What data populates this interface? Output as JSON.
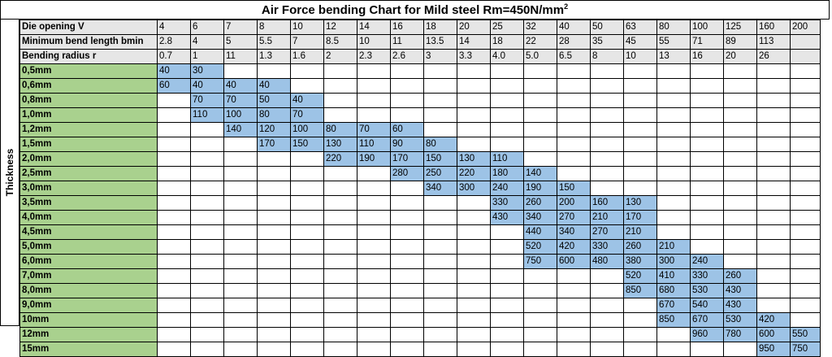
{
  "title": "Air Force bending Chart for Mild steel Rm=450N/mm",
  "title_sup": "2",
  "side_label": "Thickness",
  "header_rows": [
    {
      "label": "Die opening V",
      "values": [
        "4",
        "6",
        "7",
        "8",
        "10",
        "12",
        "14",
        "16",
        "18",
        "20",
        "25",
        "32",
        "40",
        "50",
        "63",
        "80",
        "100",
        "125",
        "160",
        "200"
      ]
    },
    {
      "label": "Minimum bend length bmin",
      "values": [
        "2.8",
        "4",
        "5",
        "5.5",
        "7",
        "8.5",
        "10",
        "11",
        "13.5",
        "14",
        "18",
        "22",
        "28",
        "35",
        "45",
        "55",
        "71",
        "89",
        "113",
        ""
      ]
    },
    {
      "label": "Bending radius r",
      "values": [
        "0.7",
        "1",
        "11",
        "1.3",
        "1.6",
        "2",
        "2.3",
        "2.6",
        "3",
        "3.3",
        "4.0",
        "5.0",
        "6.5",
        "8",
        "10",
        "13",
        "16",
        "20",
        "26",
        ""
      ]
    }
  ],
  "rows": [
    {
      "label": "0,5mm",
      "start": 0,
      "values": [
        "40",
        "30"
      ]
    },
    {
      "label": "0,6mm",
      "start": 0,
      "values": [
        "60",
        "40",
        "40",
        "40"
      ]
    },
    {
      "label": "0,8mm",
      "start": 1,
      "values": [
        "70",
        "70",
        "50",
        "40"
      ]
    },
    {
      "label": "1,0mm",
      "start": 1,
      "values": [
        "110",
        "100",
        "80",
        "70"
      ]
    },
    {
      "label": "1,2mm",
      "start": 2,
      "values": [
        "140",
        "120",
        "100",
        "80",
        "70",
        "60"
      ]
    },
    {
      "label": "1,5mm",
      "start": 3,
      "values": [
        "170",
        "150",
        "130",
        "110",
        "90",
        "80"
      ]
    },
    {
      "label": "2,0mm",
      "start": 5,
      "values": [
        "220",
        "190",
        "170",
        "150",
        "130",
        "110"
      ]
    },
    {
      "label": "2,5mm",
      "start": 7,
      "values": [
        "280",
        "250",
        "220",
        "180",
        "140"
      ]
    },
    {
      "label": "3,0mm",
      "start": 8,
      "values": [
        "340",
        "300",
        "240",
        "190",
        "150"
      ]
    },
    {
      "label": "3,5mm",
      "start": 10,
      "values": [
        "330",
        "260",
        "200",
        "160",
        "130"
      ]
    },
    {
      "label": "4,0mm",
      "start": 10,
      "values": [
        "430",
        "340",
        "270",
        "210",
        "170"
      ]
    },
    {
      "label": "4,5mm",
      "start": 11,
      "values": [
        "440",
        "340",
        "270",
        "210"
      ]
    },
    {
      "label": "5,0mm",
      "start": 11,
      "values": [
        "520",
        "420",
        "330",
        "260",
        "210"
      ]
    },
    {
      "label": "6,0mm",
      "start": 11,
      "values": [
        "750",
        "600",
        "480",
        "380",
        "300",
        "240"
      ]
    },
    {
      "label": "7,0mm",
      "start": 14,
      "values": [
        "520",
        "410",
        "330",
        "260"
      ]
    },
    {
      "label": "8,0mm",
      "start": 14,
      "values": [
        "850",
        "680",
        "530",
        "430"
      ]
    },
    {
      "label": "9,0mm",
      "start": 15,
      "values": [
        "670",
        "540",
        "430"
      ]
    },
    {
      "label": "10mm",
      "start": 15,
      "values": [
        "850",
        "670",
        "530",
        "420"
      ]
    },
    {
      "label": "12mm",
      "start": 16,
      "values": [
        "960",
        "780",
        "600",
        "550"
      ]
    },
    {
      "label": "15mm",
      "start": 18,
      "values": [
        "950",
        "750"
      ]
    }
  ]
}
